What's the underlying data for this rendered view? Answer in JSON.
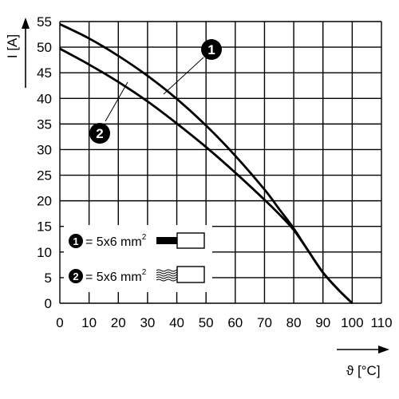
{
  "chart_data": {
    "type": "line",
    "xlabel": "ϑ [°C]",
    "ylabel": "I [A]",
    "xlim": [
      0,
      110
    ],
    "ylim": [
      0,
      55
    ],
    "x_ticks": [
      "0",
      "10",
      "20",
      "30",
      "40",
      "50",
      "60",
      "70",
      "80",
      "90",
      "100",
      "110"
    ],
    "y_ticks": [
      "0",
      "5",
      "10",
      "15",
      "20",
      "25",
      "30",
      "35",
      "40",
      "45",
      "50",
      "55"
    ],
    "grid": true,
    "legend_position": "lower-left",
    "series": [
      {
        "name": "5x6 mm",
        "marker": "1",
        "unit_sup": "2",
        "legend_icon": "solid-conductor-icon",
        "x": [
          0,
          10,
          20,
          30,
          40,
          50,
          60,
          70,
          75,
          80,
          85,
          90,
          95,
          100
        ],
        "y": [
          54.5,
          51.7,
          48.3,
          44.4,
          39.9,
          34.7,
          28.8,
          22.2,
          18.4,
          14.6,
          10.2,
          6.0,
          2.8,
          0
        ]
      },
      {
        "name": "5x6 mm",
        "marker": "2",
        "unit_sup": "2",
        "legend_icon": "stranded-conductor-icon",
        "x": [
          0,
          10,
          20,
          30,
          40,
          50,
          60,
          70,
          75,
          80,
          85,
          90,
          95,
          100
        ],
        "y": [
          49.7,
          46.6,
          43.2,
          39.4,
          35.1,
          30.5,
          25.5,
          20.2,
          17.4,
          14.3,
          10.2,
          6.0,
          2.8,
          0
        ]
      }
    ]
  }
}
